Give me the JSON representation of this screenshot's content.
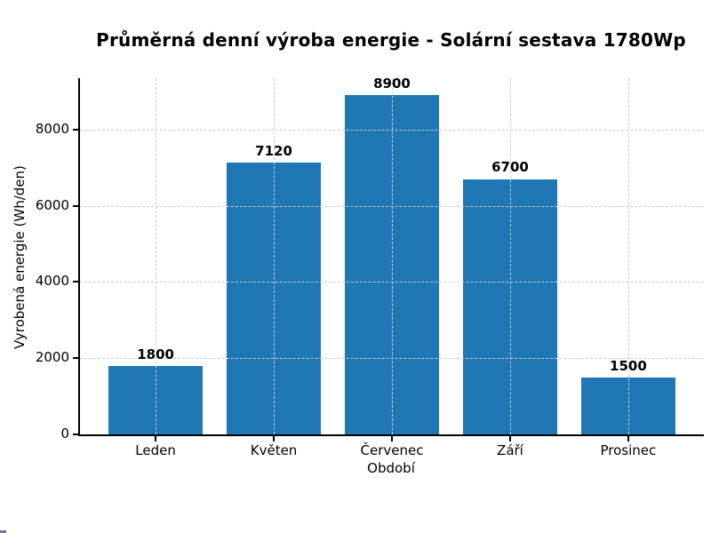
{
  "chart_data": {
    "type": "bar",
    "title": "Průměrná denní výroba energie - Solární sestava 1780Wp",
    "xlabel": "Období",
    "ylabel": "Vyrobená energie (Wh/den)",
    "categories": [
      "Leden",
      "Květen",
      "Červenec",
      "Září",
      "Prosinec"
    ],
    "values": [
      1800,
      7120,
      8900,
      6700,
      1500
    ],
    "bar_labels": [
      "1800",
      "7120",
      "8900",
      "6700",
      "1500"
    ],
    "yticks": [
      0,
      2000,
      4000,
      6000,
      8000
    ],
    "ylim": [
      0,
      9345
    ],
    "grid": "dashed both-axes light-gray drawn above bars",
    "legend_position": "none",
    "bar_color": "#1f77b4",
    "grid_color": "#cccccc",
    "spine_color": "#000000",
    "text_color": "#000000",
    "background_color": "#ffffff"
  }
}
